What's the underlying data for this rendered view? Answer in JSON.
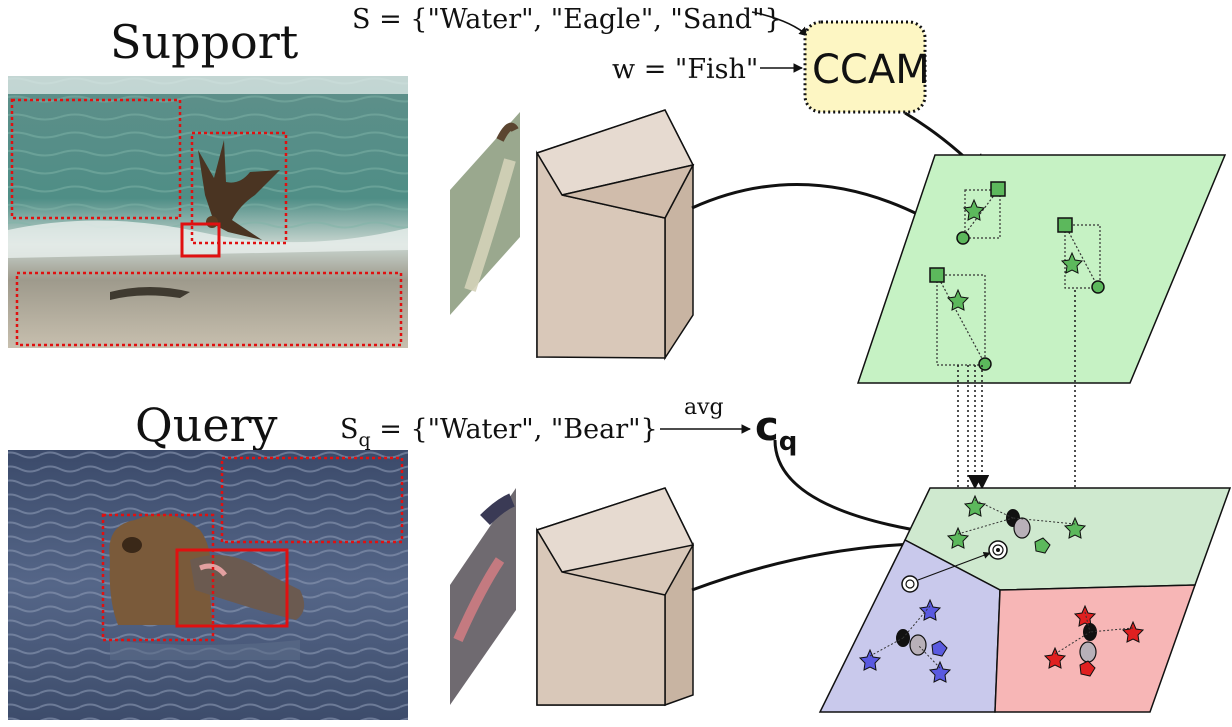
{
  "support": {
    "title": "Support",
    "set_eq": "S = {\"Water\", \"Eagle\", \"Sand\"}",
    "word_eq": "w = \"Fish\"",
    "photo": "eagle-on-beach-photo"
  },
  "ccam": {
    "label": "CCAM",
    "fill": "#fdf6c3"
  },
  "query": {
    "title": "Query",
    "set_prefix": "S",
    "set_sub": "q",
    "set_rest": " = {\"Water\", \"Bear\"}",
    "avg_label": "avg",
    "centroid": "c",
    "centroid_sub": "q",
    "photo": "bear-eating-fish-photo"
  },
  "colors": {
    "support_plane": "#c6f2c4",
    "query_green": "#cfe9cf",
    "query_blue": "#c9c9ec",
    "query_red": "#f7b6b6",
    "box_red": "#e01010",
    "marker_green": "#5cb85c",
    "marker_blue": "#5a5ae0",
    "marker_red": "#e02020",
    "encoder": "#dccbbc"
  }
}
